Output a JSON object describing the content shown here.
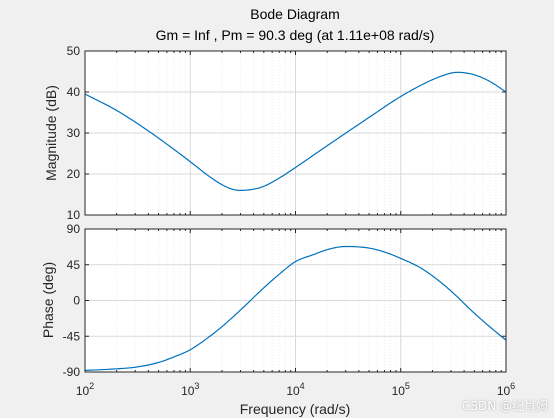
{
  "window": {
    "background": "#f0f0f0",
    "watermark": "CSDN @纪肖姆"
  },
  "colors": {
    "line": "#0072bd",
    "grid_major": "#d9d9d9",
    "grid_minor": "#ececec",
    "axes_box": "#262626",
    "plot_bg": "#ffffff"
  },
  "chart_data": [
    {
      "type": "line",
      "title": "Bode Diagram",
      "subtitle": "Gm = Inf ,  Pm = 90.3 deg (at 1.11e+08 rad/s)",
      "xlabel": "",
      "ylabel": "Magnitude (dB)",
      "xscale": "log",
      "xlim": [
        100,
        1000000
      ],
      "ylim": [
        10,
        50
      ],
      "yticks": [
        10,
        20,
        30,
        40,
        50
      ],
      "ytick_labels": [
        "10",
        "20",
        "30",
        "40",
        "50"
      ],
      "grid": true,
      "series": [
        {
          "x": [
            100,
            200,
            400,
            700,
            1000,
            1500,
            2000,
            2500,
            3000,
            4000,
            5000,
            7000,
            10000,
            20000,
            50000,
            100000,
            200000,
            300000,
            350000,
            400000,
            500000,
            700000,
            1000000
          ],
          "y": [
            39.5,
            35.5,
            30.5,
            26.0,
            23.0,
            19.5,
            17.4,
            16.3,
            16.0,
            16.3,
            17.0,
            19.0,
            21.6,
            26.9,
            33.8,
            38.9,
            43.0,
            44.6,
            44.8,
            44.7,
            44.2,
            42.6,
            40.0
          ]
        }
      ]
    },
    {
      "type": "line",
      "title": "",
      "xlabel": "Frequency  (rad/s)",
      "ylabel": "Phase (deg)",
      "xscale": "log",
      "xlim": [
        100,
        1000000
      ],
      "ylim": [
        -90,
        90
      ],
      "yticks": [
        -90,
        -45,
        0,
        45,
        90
      ],
      "ytick_labels": [
        "-90",
        "-45",
        "0",
        "45",
        "90"
      ],
      "xticks": [
        {
          "base": "10",
          "exp": "2"
        },
        {
          "base": "10",
          "exp": "3"
        },
        {
          "base": "10",
          "exp": "4"
        },
        {
          "base": "10",
          "exp": "5"
        },
        {
          "base": "10",
          "exp": "6"
        }
      ],
      "grid": true,
      "series": [
        {
          "x": [
            100,
            200,
            300,
            500,
            700,
            1000,
            1500,
            2000,
            3000,
            5000,
            7000,
            10000,
            15000,
            20000,
            30000,
            50000,
            70000,
            100000,
            150000,
            200000,
            300000,
            500000,
            700000,
            1000000
          ],
          "y": [
            -88,
            -86,
            -84,
            -78,
            -71,
            -62,
            -46,
            -33,
            -12,
            16,
            33,
            49,
            58,
            64,
            68,
            66,
            61,
            53,
            42,
            31,
            12,
            -16,
            -33,
            -50
          ]
        }
      ]
    }
  ]
}
